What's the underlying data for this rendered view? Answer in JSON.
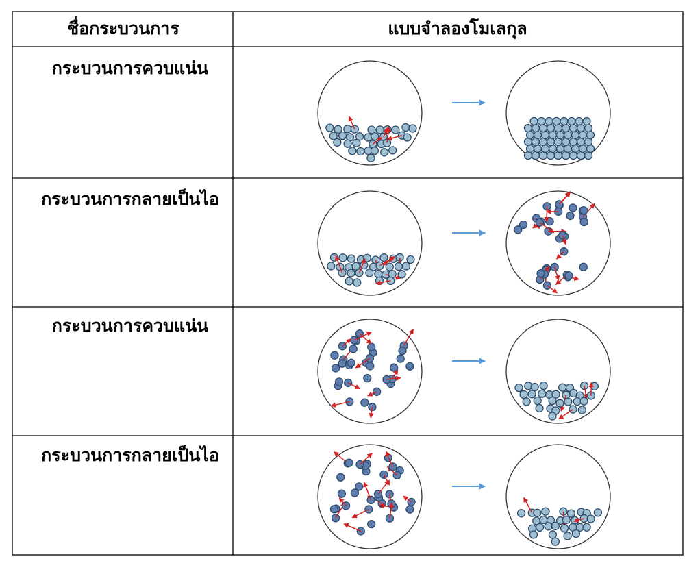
{
  "table": {
    "header": [
      "ชื่อกระบวนการ",
      "แบบจำลองโมเลกุล"
    ],
    "rows": [
      "กระบวนการควบแน่น",
      "กระบวนการกลายเป็นไอ",
      "กระบวนการควบแน่น",
      "กระบวนการกลายเป็นไอ"
    ]
  }
}
